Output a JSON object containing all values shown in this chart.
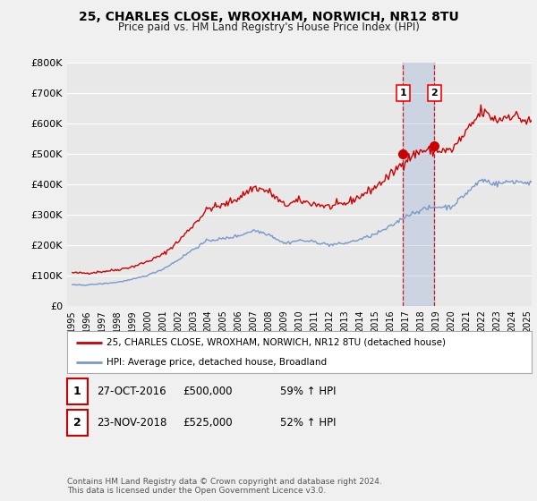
{
  "title": "25, CHARLES CLOSE, WROXHAM, NORWICH, NR12 8TU",
  "subtitle": "Price paid vs. HM Land Registry's House Price Index (HPI)",
  "legend_label_red": "25, CHARLES CLOSE, WROXHAM, NORWICH, NR12 8TU (detached house)",
  "legend_label_blue": "HPI: Average price, detached house, Broadland",
  "transaction1_date": "27-OCT-2016",
  "transaction1_price": "£500,000",
  "transaction1_hpi": "59% ↑ HPI",
  "transaction2_date": "23-NOV-2018",
  "transaction2_price": "£525,000",
  "transaction2_hpi": "52% ↑ HPI",
  "footnote": "Contains HM Land Registry data © Crown copyright and database right 2024.\nThis data is licensed under the Open Government Licence v3.0.",
  "ylim": [
    0,
    800000
  ],
  "yticks": [
    0,
    100000,
    200000,
    300000,
    400000,
    500000,
    600000,
    700000,
    800000
  ],
  "ytick_labels": [
    "£0",
    "£100K",
    "£200K",
    "£300K",
    "£400K",
    "£500K",
    "£600K",
    "£700K",
    "£800K"
  ],
  "background_color": "#f0f0f0",
  "plot_background": "#e8e8e8",
  "grid_color": "#ffffff",
  "red_color": "#cc0000",
  "blue_color": "#7799cc",
  "marker1_x": 2016.83,
  "marker1_y": 500000,
  "marker2_x": 2018.9,
  "marker2_y": 525000,
  "xlim_left": 1994.7,
  "xlim_right": 2025.3,
  "xtick_years": [
    1995,
    1996,
    1997,
    1998,
    1999,
    2000,
    2001,
    2002,
    2003,
    2004,
    2005,
    2006,
    2007,
    2008,
    2009,
    2010,
    2011,
    2012,
    2013,
    2014,
    2015,
    2016,
    2017,
    2018,
    2019,
    2020,
    2021,
    2022,
    2023,
    2024,
    2025
  ]
}
